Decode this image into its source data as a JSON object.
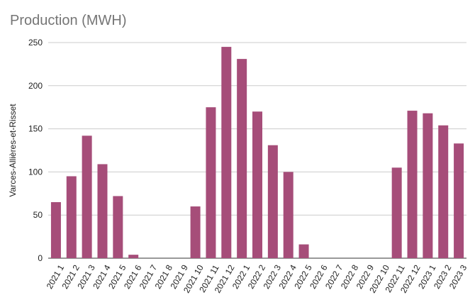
{
  "chart_data": {
    "type": "bar",
    "title": "Production (MWH)",
    "xlabel": "",
    "ylabel": "Varces-Allières-et-Risset",
    "ylim": [
      0,
      250
    ],
    "yticks": [
      0,
      50,
      100,
      150,
      200,
      250
    ],
    "grid": true,
    "bar_color": "#a64d79",
    "categories": [
      "2021 1",
      "2021 2",
      "2021 3",
      "2021 4",
      "2021 5",
      "2021 6",
      "2021 7",
      "2021 8",
      "2021 9",
      "2021 10",
      "2021 11",
      "2021 12",
      "2022 1",
      "2022 2",
      "2022 3",
      "2022 4",
      "2022 5",
      "2022 6",
      "2022 7",
      "2022 8",
      "2022 9",
      "2022 10",
      "2022 11",
      "2022 12",
      "2023 1",
      "2023 2",
      "2023 3"
    ],
    "values": [
      65,
      95,
      142,
      109,
      72,
      4,
      0,
      0,
      0,
      60,
      175,
      245,
      231,
      170,
      131,
      100,
      16,
      0,
      0,
      0,
      0,
      0,
      105,
      171,
      168,
      154,
      133
    ]
  }
}
